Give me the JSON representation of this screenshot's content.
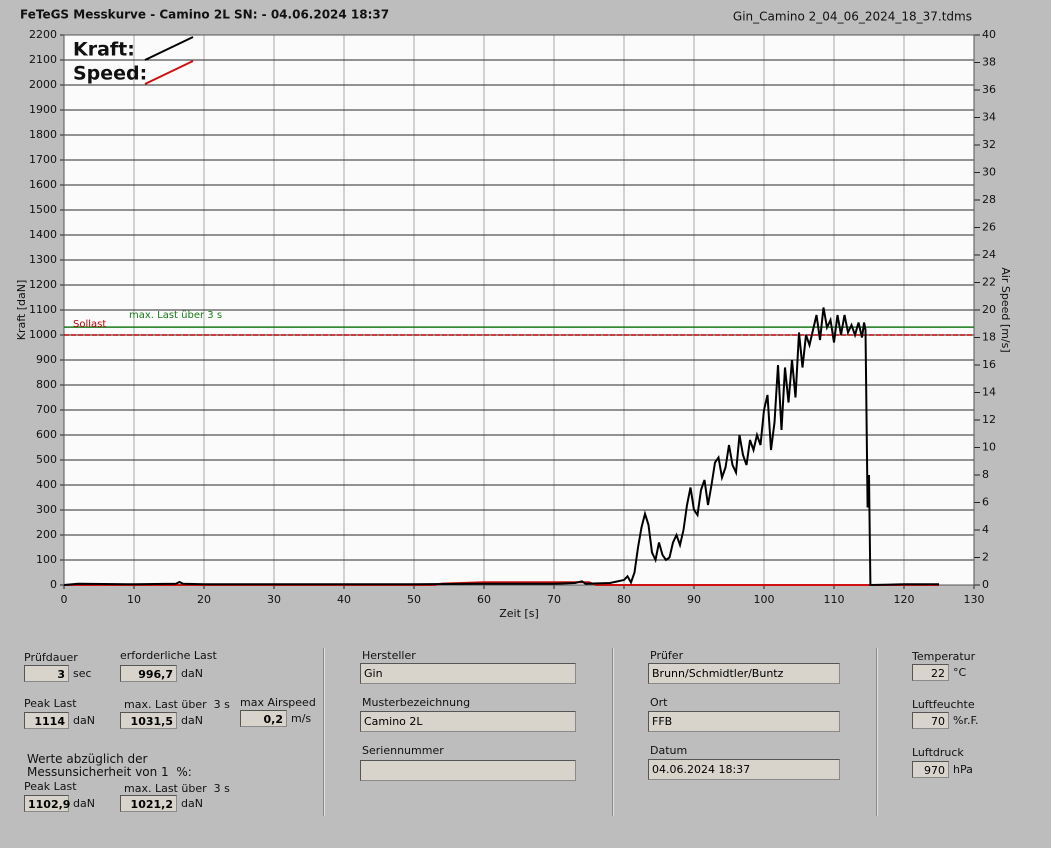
{
  "chart_data": {
    "type": "line",
    "title": "FeTeGS Messkurve - Camino 2L  SN:  - 04.06.2024 18:37",
    "file": "Gin_Camino 2_04_06_2024_18_37.tdms",
    "x_label": "Zeit [s]",
    "y_label": "Kraft [daN]",
    "y2_label": "Air Speed [m/s]",
    "xlim": [
      0,
      130
    ],
    "xticks": [
      0,
      10,
      20,
      30,
      40,
      50,
      60,
      70,
      80,
      90,
      100,
      110,
      120,
      130
    ],
    "ylim": [
      0,
      2200
    ],
    "yticks": [
      0,
      100,
      200,
      300,
      400,
      500,
      600,
      700,
      800,
      900,
      1000,
      1100,
      1200,
      1300,
      1400,
      1500,
      1600,
      1700,
      1800,
      1900,
      2000,
      2100,
      2200
    ],
    "y2lim": [
      0,
      40
    ],
    "y2ticks": [
      0,
      2,
      4,
      6,
      8,
      10,
      12,
      14,
      16,
      18,
      20,
      22,
      24,
      26,
      28,
      30,
      32,
      34,
      36,
      38,
      40
    ],
    "grid": true,
    "reference_lines": [
      {
        "label": "max. Last über  3 s",
        "value": 1031.5,
        "color": "#1a7a1a"
      },
      {
        "label": "Sollast",
        "value": 1000,
        "color": "#c00000"
      }
    ],
    "series": [
      {
        "name": "Kraft:",
        "color": "#000000",
        "x": [
          0,
          2,
          10,
          16,
          16.5,
          17,
          20,
          30,
          40,
          50,
          60,
          70,
          73,
          74,
          74.5,
          78,
          80,
          80.5,
          81,
          81.5,
          82,
          82.5,
          83,
          83.5,
          84,
          84.5,
          85,
          85.5,
          86,
          86.5,
          87,
          87.5,
          88,
          88.5,
          89,
          89.5,
          90,
          90.5,
          91,
          91.5,
          92,
          92.5,
          93,
          93.5,
          94,
          94.5,
          95,
          95.5,
          96,
          96.5,
          97,
          97.5,
          98,
          98.5,
          99,
          99.5,
          100,
          100.5,
          101,
          101.5,
          102,
          102.5,
          103,
          103.5,
          104,
          104.5,
          105,
          105.5,
          106,
          106.5,
          107,
          107.5,
          108,
          108.5,
          109,
          109.5,
          110,
          110.5,
          111,
          111.5,
          112,
          112.5,
          113,
          113.5,
          114,
          114.3,
          114.5,
          114.8,
          115,
          115.2,
          120,
          125
        ],
        "values": [
          0,
          5,
          3,
          5,
          12,
          5,
          3,
          3,
          3,
          3,
          5,
          5,
          8,
          15,
          5,
          8,
          20,
          35,
          10,
          50,
          150,
          230,
          285,
          240,
          130,
          100,
          170,
          120,
          100,
          110,
          170,
          200,
          160,
          220,
          320,
          390,
          300,
          280,
          380,
          420,
          320,
          400,
          490,
          510,
          430,
          470,
          560,
          480,
          450,
          600,
          520,
          480,
          580,
          540,
          600,
          560,
          700,
          760,
          540,
          650,
          880,
          620,
          870,
          730,
          900,
          750,
          1010,
          870,
          1000,
          960,
          1020,
          1080,
          980,
          1110,
          1030,
          1060,
          970,
          1080,
          1000,
          1080,
          1010,
          1040,
          1000,
          1050,
          990,
          1050,
          1020,
          310,
          440,
          0,
          3,
          3
        ]
      },
      {
        "name": "Speed:",
        "color": "#d01010",
        "axis": "y2",
        "x": [
          0,
          53,
          54,
          60,
          75,
          76,
          114,
          125
        ],
        "values": [
          0,
          0,
          0.1,
          0.2,
          0.2,
          0,
          0,
          0
        ]
      }
    ]
  },
  "panel": {
    "note": "Werte abzüglich der\nMessunsicherheit von 1  %:",
    "fields": [
      {
        "label": "Prüfdauer",
        "value": "3",
        "unit": "sec"
      },
      {
        "label": "erforderliche Last",
        "value": "996,7",
        "unit": "daN"
      },
      {
        "label": "Peak Last",
        "value": "1114",
        "unit": "daN"
      },
      {
        "label": "max. Last über  3 s",
        "value": "1031,5",
        "unit": "daN"
      },
      {
        "label": "max Airspeed",
        "value": "0,2",
        "unit": "m/s"
      },
      {
        "label": "Peak Last",
        "value": "1102,9",
        "unit": "daN"
      },
      {
        "label": "max. Last über  3 s",
        "value": "1021,2",
        "unit": "daN"
      },
      {
        "label": "Hersteller",
        "value": "Gin"
      },
      {
        "label": "Musterbezeichnung",
        "value": "Camino 2L"
      },
      {
        "label": "Seriennummer"
      },
      {
        "label": "Prüfer",
        "value": "Brunn/Schmidtler/Buntz"
      },
      {
        "label": "Ort",
        "value": "FFB"
      },
      {
        "label": "Datum",
        "value": "04.06.2024 18:37"
      },
      {
        "label": "Temperatur",
        "value": "22",
        "unit": "°C"
      },
      {
        "label": "Luftfeuchte",
        "value": "70",
        "unit": "%r.F."
      },
      {
        "label": "Luftdruck",
        "value": "970",
        "unit": "hPa"
      }
    ]
  }
}
